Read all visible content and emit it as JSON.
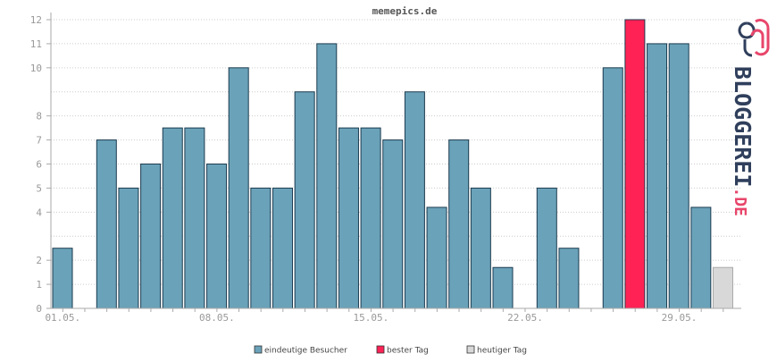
{
  "chart_data": {
    "type": "bar",
    "title": "memepics.de",
    "xlabel": "",
    "ylabel": "",
    "ylim": [
      0,
      12
    ],
    "y_ticks": [
      0,
      1,
      2,
      3,
      4,
      5,
      6,
      7,
      8,
      9,
      10,
      11,
      12
    ],
    "y_tick_labels": [
      "0",
      "1",
      "2",
      "4",
      "5",
      "6",
      "7",
      "8",
      "10",
      "11",
      "12"
    ],
    "x_tick_labels": [
      {
        "label": "01.05.",
        "day": 1
      },
      {
        "label": "08.05.",
        "day": 8
      },
      {
        "label": "15.05.",
        "day": 15
      },
      {
        "label": "22.05.",
        "day": 22
      },
      {
        "label": "29.05.",
        "day": 29
      }
    ],
    "grid": true,
    "days": [
      1,
      2,
      3,
      4,
      5,
      6,
      7,
      8,
      9,
      10,
      11,
      12,
      13,
      14,
      15,
      16,
      17,
      18,
      19,
      20,
      21,
      22,
      23,
      24,
      25,
      26,
      27,
      28,
      29,
      30
    ],
    "values": [
      2.5,
      0,
      7,
      5,
      6,
      7.5,
      7.5,
      6,
      10,
      5,
      5,
      9,
      11,
      7.5,
      7.5,
      7,
      9,
      4.2,
      7,
      5,
      1.7,
      0,
      5,
      2.5,
      0,
      10,
      12,
      11,
      11,
      4.2
    ],
    "bar_kinds": [
      "normal",
      "normal",
      "normal",
      "normal",
      "normal",
      "normal",
      "normal",
      "normal",
      "normal",
      "normal",
      "normal",
      "normal",
      "normal",
      "normal",
      "normal",
      "normal",
      "normal",
      "normal",
      "normal",
      "normal",
      "normal",
      "normal",
      "normal",
      "normal",
      "normal",
      "normal",
      "best",
      "normal",
      "normal",
      "normal"
    ],
    "today": {
      "day": 31,
      "value": 1.7
    },
    "colors": {
      "normal": "#6aa2b9",
      "best": "#ff2255",
      "today": "#d8d8d8"
    },
    "legend": [
      {
        "key": "normal",
        "label": "eindeutige Besucher"
      },
      {
        "key": "best",
        "label": "bester Tag"
      },
      {
        "key": "today",
        "label": "heutiger Tag"
      }
    ],
    "legend_position": "bottom"
  },
  "logo": {
    "text": "BLOGGEREI",
    "suffix": ".DE",
    "icon": "logo-icon",
    "colors": {
      "main": "#2f3f5c",
      "accent": "#e8466b"
    }
  }
}
